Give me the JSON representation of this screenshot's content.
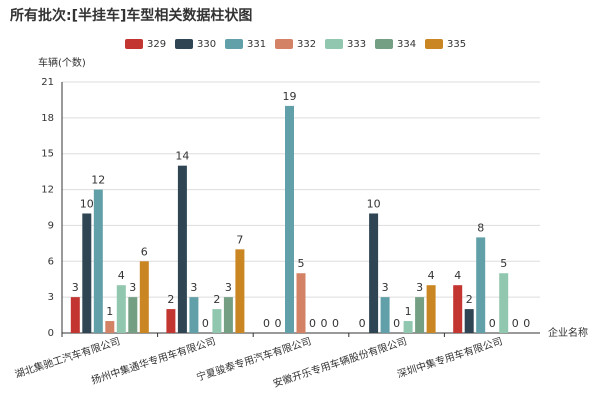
{
  "chart_data": {
    "type": "bar",
    "title": "所有批次:[半挂车]车型相关数据柱状图",
    "y_label": "车辆(个数)",
    "x_label": "企业名称",
    "categories": [
      "湖北集驰工汽车有限公司",
      "扬州中集通华专用车有限公司",
      "宁夏骏泰专用汽车有限公司",
      "安徽开乐专用车辆股份有限公司",
      "深圳中集专用车有限公司"
    ],
    "series": [
      {
        "name": "329",
        "color": "#c23531",
        "values": [
          3,
          2,
          0,
          0,
          4
        ]
      },
      {
        "name": "330",
        "color": "#2f4554",
        "values": [
          10,
          14,
          0,
          10,
          2
        ]
      },
      {
        "name": "331",
        "color": "#61a0a8",
        "values": [
          12,
          3,
          19,
          3,
          8
        ]
      },
      {
        "name": "332",
        "color": "#d48265",
        "values": [
          1,
          0,
          5,
          0,
          0
        ]
      },
      {
        "name": "333",
        "color": "#91c7ae",
        "values": [
          4,
          2,
          0,
          1,
          5
        ]
      },
      {
        "name": "334",
        "color": "#749f83",
        "values": [
          3,
          3,
          0,
          3,
          0
        ]
      },
      {
        "name": "335",
        "color": "#ca8622",
        "values": [
          6,
          7,
          0,
          4,
          0
        ]
      }
    ],
    "ylim": [
      0,
      21
    ],
    "yticks": [
      0,
      3,
      6,
      9,
      12,
      15,
      18,
      21
    ],
    "grid": true
  }
}
